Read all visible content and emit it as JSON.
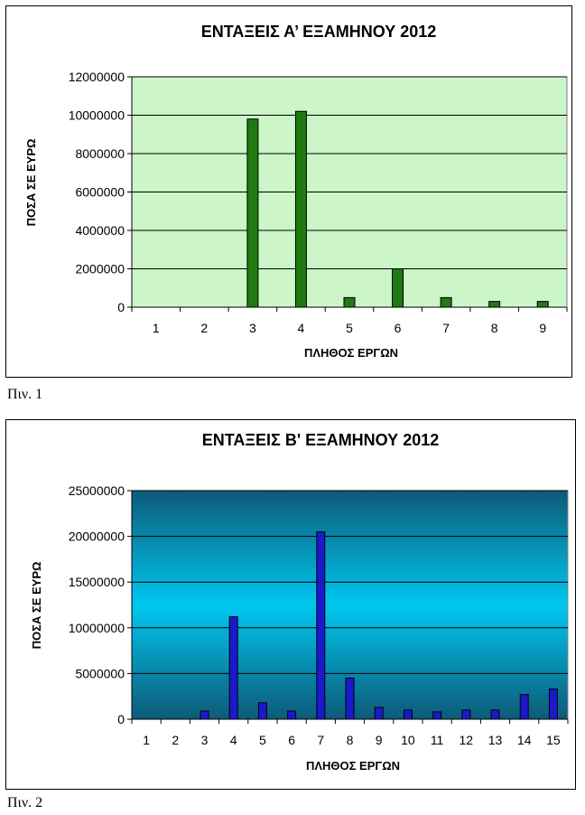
{
  "captions": [
    "Πιν. 1",
    "Πιν. 2"
  ],
  "chart_data": [
    {
      "type": "bar",
      "title": "ΕΝΤΑΞΕΙΣ Α’ ΕΞΑΜΗΝΟΥ 2012",
      "xlabel": "ΠΛΗΘΟΣ ΕΡΓΩΝ",
      "ylabel": "ΠΟΣΑ ΣΕ ΕΥΡΩ",
      "categories": [
        "1",
        "2",
        "3",
        "4",
        "5",
        "6",
        "7",
        "8",
        "9"
      ],
      "values": [
        0,
        0,
        9800000,
        10200000,
        500000,
        2000000,
        500000,
        300000,
        300000
      ],
      "ylim": [
        0,
        12000000
      ],
      "yticks": [
        "0",
        "2000000",
        "4000000",
        "6000000",
        "8000000",
        "10000000",
        "12000000"
      ],
      "grid": true,
      "colors": {
        "bar": "#1f7a12",
        "bar_edge": "#000000",
        "plot_bg": "#ccf5c8"
      }
    },
    {
      "type": "bar",
      "title": "ΕΝΤΑΞΕΙΣ Β'  ΕΞΑΜΗΝΟΥ 2012",
      "xlabel": "ΠΛΗΘΟΣ ΕΡΓΩΝ",
      "ylabel": "ΠΟΣΑ ΣΕ ΕΥΡΩ",
      "categories": [
        "1",
        "2",
        "3",
        "4",
        "5",
        "6",
        "7",
        "8",
        "9",
        "10",
        "11",
        "12",
        "13",
        "14",
        "15"
      ],
      "values": [
        0,
        0,
        900000,
        11200000,
        1800000,
        900000,
        20500000,
        4500000,
        1300000,
        1000000,
        800000,
        1000000,
        1000000,
        2700000,
        3300000
      ],
      "ylim": [
        0,
        25000000
      ],
      "yticks": [
        "0",
        "5000000",
        "10000000",
        "15000000",
        "20000000",
        "25000000"
      ],
      "grid": true,
      "colors": {
        "bar": "#1a1acc",
        "bar_edge": "#000000",
        "plot_bg_edge": "#0d5a78",
        "plot_bg_mid": "#00c8f0"
      }
    }
  ]
}
